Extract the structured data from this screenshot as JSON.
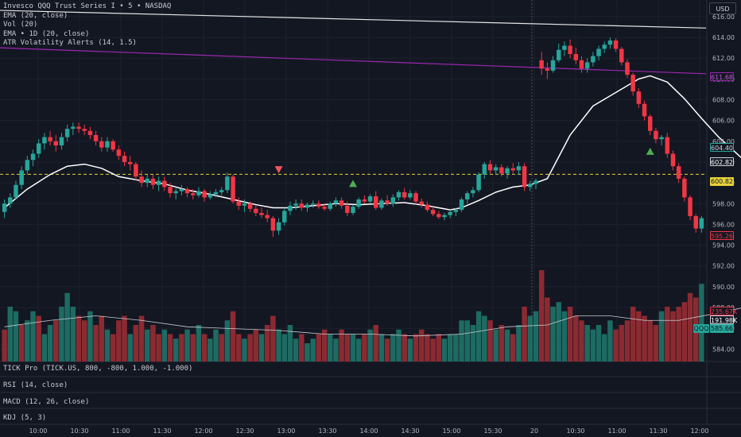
{
  "legend": {
    "symbol": "Invesco QQQ Trust Series I  •  5  •  NASDAQ",
    "ema": "EMA (20, close)",
    "vol": "Vol (20)",
    "ema_1d": "EMA  •  1D (20, close)",
    "atr": "ATR Volatility Alerts (14, 1.5)"
  },
  "currency": "USD",
  "panes": {
    "tick": "TICK Pro (TICK.US, 800, -800, 1.000, -1.000)",
    "rsi": "RSI (14, close)",
    "macd": "MACD (12, 26, close)",
    "kdj": "KDJ (5, 3)"
  },
  "price_tags": {
    "ema_1d": "611.68",
    "green": "604.40",
    "white": "602.82",
    "dashed": "600.82",
    "red": "595.26",
    "vol_red": "235.67K",
    "vol_white": "191.98K",
    "symbol": "QQQ",
    "symbol_price": "585.66"
  },
  "colors": {
    "background": "#131722",
    "up": "#26a69a",
    "down": "#f23645",
    "vol_up": "#1d6b62",
    "vol_down": "#8c2a31",
    "ema": "#ffffff",
    "ema_1d": "#9c27b0",
    "dashed": "#e6d23a",
    "grid": "#1e222d"
  },
  "chart_data": {
    "type": "candlestick",
    "y_ticks": [
      "616.00",
      "614.00",
      "612.00",
      "610.00",
      "608.00",
      "606.00",
      "604.00",
      "602.00",
      "600.00",
      "598.00",
      "596.00",
      "594.00",
      "592.00",
      "590.00",
      "588.00",
      "586.00",
      "584.00"
    ],
    "x_ticks": [
      "10:00",
      "10:30",
      "11:00",
      "11:30",
      "12:00",
      "12:30",
      "13:00",
      "13:30",
      "14:00",
      "14:30",
      "15:00",
      "15:30",
      "20",
      "10:30",
      "11:00",
      "11:30",
      "12:00"
    ],
    "ylim": [
      582.8,
      617.6
    ],
    "dashed_level": 600.82,
    "white_line": [
      [
        0,
        616.6
      ],
      [
        894,
        614.9
      ]
    ],
    "ema_1d_line": [
      [
        0,
        613.0
      ],
      [
        894,
        610.5
      ]
    ],
    "separator_x_index": 20.0,
    "candles": [
      [
        597.2,
        598.4,
        596.6,
        598.0
      ],
      [
        598.0,
        599.0,
        597.6,
        598.6
      ],
      [
        598.6,
        600.2,
        598.4,
        599.8
      ],
      [
        599.8,
        601.6,
        599.4,
        601.2
      ],
      [
        601.2,
        602.6,
        600.8,
        602.2
      ],
      [
        602.2,
        603.2,
        601.6,
        602.8
      ],
      [
        602.8,
        604.2,
        602.4,
        603.8
      ],
      [
        603.8,
        604.8,
        603.2,
        604.4
      ],
      [
        604.4,
        605.0,
        603.6,
        604.0
      ],
      [
        604.0,
        604.6,
        603.0,
        603.6
      ],
      [
        603.6,
        604.8,
        603.2,
        604.4
      ],
      [
        604.4,
        605.6,
        604.0,
        605.2
      ],
      [
        605.2,
        605.8,
        604.6,
        605.4
      ],
      [
        605.4,
        605.8,
        604.8,
        605.2
      ],
      [
        605.2,
        605.6,
        604.6,
        605.0
      ],
      [
        605.0,
        605.4,
        604.2,
        604.6
      ],
      [
        604.6,
        605.0,
        603.6,
        604.0
      ],
      [
        604.0,
        604.4,
        603.0,
        603.4
      ],
      [
        603.4,
        604.4,
        603.0,
        604.0
      ],
      [
        604.0,
        604.2,
        603.0,
        603.2
      ],
      [
        603.2,
        603.6,
        602.2,
        602.6
      ],
      [
        602.6,
        603.0,
        601.6,
        602.0
      ],
      [
        602.0,
        602.6,
        601.2,
        601.8
      ],
      [
        601.8,
        602.0,
        600.2,
        600.6
      ],
      [
        600.6,
        601.2,
        599.6,
        600.0
      ],
      [
        600.0,
        600.8,
        599.6,
        600.4
      ],
      [
        600.4,
        600.8,
        599.4,
        599.8
      ],
      [
        599.8,
        600.6,
        599.2,
        600.2
      ],
      [
        600.2,
        600.6,
        599.2,
        599.6
      ],
      [
        599.6,
        600.0,
        598.6,
        599.0
      ],
      [
        599.0,
        599.6,
        598.4,
        599.2
      ],
      [
        599.2,
        599.8,
        598.8,
        599.4
      ],
      [
        599.4,
        599.6,
        598.6,
        599.0
      ],
      [
        599.0,
        599.4,
        598.4,
        598.8
      ],
      [
        598.8,
        599.6,
        598.6,
        599.2
      ],
      [
        599.2,
        599.4,
        598.2,
        598.6
      ],
      [
        598.6,
        599.2,
        598.4,
        598.9
      ],
      [
        598.9,
        599.4,
        598.6,
        599.1
      ],
      [
        599.1,
        599.6,
        598.8,
        599.3
      ],
      [
        599.3,
        601.0,
        599.0,
        600.6
      ],
      [
        600.6,
        600.8,
        598.0,
        598.2
      ],
      [
        598.2,
        598.6,
        597.4,
        597.8
      ],
      [
        597.8,
        598.4,
        597.2,
        598.0
      ],
      [
        598.0,
        598.2,
        597.2,
        597.5
      ],
      [
        597.5,
        597.8,
        596.8,
        597.1
      ],
      [
        597.1,
        597.6,
        596.6,
        596.9
      ],
      [
        596.9,
        597.4,
        596.2,
        596.6
      ],
      [
        596.6,
        596.8,
        594.8,
        595.4
      ],
      [
        595.4,
        596.6,
        595.0,
        596.2
      ],
      [
        596.2,
        597.6,
        595.9,
        597.3
      ],
      [
        597.3,
        598.2,
        596.9,
        597.8
      ],
      [
        597.8,
        598.4,
        597.4,
        598.0
      ],
      [
        598.0,
        598.4,
        597.3,
        597.6
      ],
      [
        597.6,
        598.1,
        597.2,
        597.9
      ],
      [
        597.9,
        598.3,
        597.6,
        598.0
      ],
      [
        598.0,
        598.3,
        597.5,
        597.7
      ],
      [
        597.7,
        598.0,
        597.3,
        597.5
      ],
      [
        597.5,
        598.2,
        597.3,
        598.0
      ],
      [
        598.0,
        598.6,
        597.7,
        598.3
      ],
      [
        598.3,
        598.6,
        597.5,
        597.8
      ],
      [
        597.8,
        598.2,
        596.8,
        597.1
      ],
      [
        597.1,
        597.9,
        596.9,
        597.7
      ],
      [
        597.7,
        598.6,
        597.5,
        598.4
      ],
      [
        598.4,
        598.8,
        598.0,
        598.2
      ],
      [
        598.2,
        598.9,
        598.0,
        598.7
      ],
      [
        598.7,
        599.2,
        597.4,
        597.6
      ],
      [
        597.6,
        598.5,
        597.4,
        598.3
      ],
      [
        598.3,
        598.8,
        597.8,
        598.0
      ],
      [
        598.0,
        598.9,
        597.7,
        598.6
      ],
      [
        598.6,
        599.3,
        598.3,
        599.1
      ],
      [
        599.1,
        599.5,
        598.4,
        598.6
      ],
      [
        598.6,
        599.3,
        598.4,
        599.0
      ],
      [
        599.0,
        599.2,
        597.9,
        598.2
      ],
      [
        598.2,
        598.5,
        597.6,
        597.9
      ],
      [
        597.9,
        598.2,
        597.2,
        597.4
      ],
      [
        597.4,
        597.7,
        596.8,
        597.0
      ],
      [
        597.0,
        597.3,
        596.5,
        596.7
      ],
      [
        596.7,
        597.1,
        596.4,
        596.9
      ],
      [
        596.9,
        597.4,
        596.6,
        597.2
      ],
      [
        597.2,
        597.6,
        596.8,
        597.4
      ],
      [
        597.4,
        598.6,
        597.2,
        598.4
      ],
      [
        598.4,
        599.2,
        598.0,
        599.0
      ],
      [
        599.0,
        599.6,
        598.6,
        599.3
      ],
      [
        599.3,
        601.0,
        599.1,
        600.8
      ],
      [
        600.8,
        602.0,
        600.4,
        601.8
      ],
      [
        601.8,
        602.2,
        600.9,
        601.2
      ],
      [
        601.2,
        601.8,
        600.8,
        601.5
      ],
      [
        601.5,
        601.8,
        600.6,
        600.9
      ],
      [
        600.9,
        601.6,
        600.4,
        601.4
      ],
      [
        601.4,
        601.9,
        600.9,
        601.2
      ],
      [
        601.2,
        602.0,
        600.8,
        601.6
      ],
      [
        601.6,
        601.9,
        599.2,
        599.6
      ],
      [
        599.6,
        600.2,
        599.2,
        599.9
      ],
      [
        599.9,
        600.4,
        599.4,
        600.2
      ],
      [
        611.8,
        612.6,
        610.4,
        611.0
      ],
      [
        611.0,
        611.6,
        610.0,
        610.8
      ],
      [
        610.8,
        612.2,
        610.6,
        611.8
      ],
      [
        611.8,
        613.4,
        611.6,
        612.8
      ],
      [
        612.8,
        613.6,
        612.2,
        613.2
      ],
      [
        613.2,
        613.8,
        612.0,
        612.4
      ],
      [
        612.4,
        613.0,
        611.4,
        611.8
      ],
      [
        611.8,
        612.2,
        610.6,
        611.0
      ],
      [
        611.0,
        612.0,
        610.6,
        611.6
      ],
      [
        611.6,
        612.6,
        611.2,
        612.2
      ],
      [
        612.2,
        613.2,
        611.8,
        612.9
      ],
      [
        612.9,
        613.6,
        612.5,
        613.3
      ],
      [
        613.3,
        614.0,
        612.9,
        613.7
      ],
      [
        613.7,
        613.9,
        612.6,
        612.9
      ],
      [
        612.9,
        613.1,
        611.3,
        611.6
      ],
      [
        611.6,
        611.9,
        610.1,
        610.4
      ],
      [
        610.4,
        610.6,
        608.4,
        608.8
      ],
      [
        608.8,
        609.1,
        607.2,
        607.6
      ],
      [
        607.6,
        607.9,
        606.0,
        606.4
      ],
      [
        606.4,
        606.6,
        604.6,
        605.0
      ],
      [
        605.0,
        605.3,
        603.8,
        604.2
      ],
      [
        604.2,
        604.6,
        603.6,
        604.4
      ],
      [
        604.4,
        604.8,
        602.4,
        602.8
      ],
      [
        602.8,
        603.1,
        601.2,
        601.6
      ],
      [
        601.6,
        601.9,
        600.0,
        600.4
      ],
      [
        600.4,
        600.6,
        598.2,
        598.6
      ],
      [
        598.6,
        598.8,
        596.4,
        596.8
      ],
      [
        596.8,
        597.0,
        595.2,
        595.6
      ],
      [
        595.6,
        596.8,
        595.2,
        596.6
      ]
    ],
    "ema_points": [
      [
        0,
        597.6
      ],
      [
        4,
        599.4
      ],
      [
        8,
        600.8
      ],
      [
        11,
        601.6
      ],
      [
        14,
        601.8
      ],
      [
        17,
        601.4
      ],
      [
        20,
        600.6
      ],
      [
        24,
        600.2
      ],
      [
        28,
        599.9
      ],
      [
        32,
        599.3
      ],
      [
        36,
        598.9
      ],
      [
        40,
        598.4
      ],
      [
        44,
        597.9
      ],
      [
        47,
        597.6
      ],
      [
        50,
        597.6
      ],
      [
        54,
        597.8
      ],
      [
        58,
        598.0
      ],
      [
        62,
        597.9
      ],
      [
        66,
        598.0
      ],
      [
        70,
        598.1
      ],
      [
        74,
        597.8
      ],
      [
        78,
        597.4
      ],
      [
        80,
        597.6
      ],
      [
        83,
        598.3
      ],
      [
        86,
        599.1
      ],
      [
        89,
        599.6
      ],
      [
        92,
        599.8
      ],
      [
        95,
        600.4
      ],
      [
        99,
        604.6
      ],
      [
        103,
        607.4
      ],
      [
        107,
        608.7
      ],
      [
        111,
        610.0
      ],
      [
        113,
        610.3
      ],
      [
        116,
        609.7
      ],
      [
        119,
        608.1
      ],
      [
        122,
        606.2
      ],
      [
        125,
        604.4
      ],
      [
        128,
        602.9
      ],
      [
        130,
        601.9
      ]
    ],
    "markers": [
      {
        "type": "down",
        "i": 48,
        "price": 601.3
      },
      {
        "type": "up",
        "i": 61,
        "price": 599.9
      },
      {
        "type": "up",
        "i": 113,
        "price": 603.0
      },
      {
        "type": "up",
        "i": 156,
        "price": 614.4
      }
    ],
    "volumes": [
      [
        0.35,
        "d"
      ],
      [
        0.6,
        "u"
      ],
      [
        0.55,
        "u"
      ],
      [
        0.4,
        "d"
      ],
      [
        0.45,
        "u"
      ],
      [
        0.55,
        "u"
      ],
      [
        0.5,
        "d"
      ],
      [
        0.3,
        "u"
      ],
      [
        0.4,
        "u"
      ],
      [
        0.45,
        "d"
      ],
      [
        0.6,
        "u"
      ],
      [
        0.75,
        "u"
      ],
      [
        0.6,
        "u"
      ],
      [
        0.5,
        "d"
      ],
      [
        0.45,
        "d"
      ],
      [
        0.55,
        "u"
      ],
      [
        0.4,
        "d"
      ],
      [
        0.5,
        "d"
      ],
      [
        0.35,
        "u"
      ],
      [
        0.3,
        "d"
      ],
      [
        0.45,
        "d"
      ],
      [
        0.5,
        "d"
      ],
      [
        0.3,
        "u"
      ],
      [
        0.4,
        "d"
      ],
      [
        0.5,
        "d"
      ],
      [
        0.35,
        "u"
      ],
      [
        0.4,
        "d"
      ],
      [
        0.3,
        "d"
      ],
      [
        0.35,
        "u"
      ],
      [
        0.3,
        "d"
      ],
      [
        0.25,
        "u"
      ],
      [
        0.3,
        "d"
      ],
      [
        0.35,
        "u"
      ],
      [
        0.3,
        "d"
      ],
      [
        0.4,
        "u"
      ],
      [
        0.3,
        "d"
      ],
      [
        0.25,
        "u"
      ],
      [
        0.35,
        "u"
      ],
      [
        0.3,
        "d"
      ],
      [
        0.45,
        "u"
      ],
      [
        0.55,
        "d"
      ],
      [
        0.3,
        "d"
      ],
      [
        0.25,
        "u"
      ],
      [
        0.3,
        "d"
      ],
      [
        0.35,
        "d"
      ],
      [
        0.3,
        "u"
      ],
      [
        0.4,
        "d"
      ],
      [
        0.5,
        "d"
      ],
      [
        0.35,
        "u"
      ],
      [
        0.3,
        "u"
      ],
      [
        0.4,
        "u"
      ],
      [
        0.25,
        "u"
      ],
      [
        0.3,
        "d"
      ],
      [
        0.2,
        "u"
      ],
      [
        0.25,
        "u"
      ],
      [
        0.3,
        "d"
      ],
      [
        0.35,
        "d"
      ],
      [
        0.3,
        "u"
      ],
      [
        0.25,
        "u"
      ],
      [
        0.35,
        "d"
      ],
      [
        0.3,
        "d"
      ],
      [
        0.3,
        "u"
      ],
      [
        0.25,
        "u"
      ],
      [
        0.3,
        "d"
      ],
      [
        0.35,
        "u"
      ],
      [
        0.4,
        "d"
      ],
      [
        0.3,
        "u"
      ],
      [
        0.25,
        "d"
      ],
      [
        0.3,
        "u"
      ],
      [
        0.35,
        "u"
      ],
      [
        0.3,
        "d"
      ],
      [
        0.25,
        "u"
      ],
      [
        0.3,
        "d"
      ],
      [
        0.35,
        "d"
      ],
      [
        0.3,
        "d"
      ],
      [
        0.25,
        "d"
      ],
      [
        0.3,
        "d"
      ],
      [
        0.25,
        "u"
      ],
      [
        0.3,
        "u"
      ],
      [
        0.3,
        "u"
      ],
      [
        0.45,
        "u"
      ],
      [
        0.45,
        "u"
      ],
      [
        0.4,
        "u"
      ],
      [
        0.55,
        "u"
      ],
      [
        0.5,
        "u"
      ],
      [
        0.45,
        "d"
      ],
      [
        0.35,
        "u"
      ],
      [
        0.4,
        "d"
      ],
      [
        0.35,
        "u"
      ],
      [
        0.3,
        "d"
      ],
      [
        0.4,
        "u"
      ],
      [
        0.6,
        "d"
      ],
      [
        0.5,
        "u"
      ],
      [
        0.55,
        "u"
      ],
      [
        1.0,
        "d"
      ],
      [
        0.7,
        "d"
      ],
      [
        0.6,
        "u"
      ],
      [
        0.65,
        "u"
      ],
      [
        0.55,
        "u"
      ],
      [
        0.6,
        "d"
      ],
      [
        0.5,
        "d"
      ],
      [
        0.45,
        "d"
      ],
      [
        0.4,
        "u"
      ],
      [
        0.35,
        "u"
      ],
      [
        0.4,
        "u"
      ],
      [
        0.3,
        "u"
      ],
      [
        0.45,
        "u"
      ],
      [
        0.35,
        "d"
      ],
      [
        0.4,
        "d"
      ],
      [
        0.45,
        "d"
      ],
      [
        0.6,
        "d"
      ],
      [
        0.55,
        "d"
      ],
      [
        0.5,
        "d"
      ],
      [
        0.45,
        "d"
      ],
      [
        0.4,
        "d"
      ],
      [
        0.55,
        "u"
      ],
      [
        0.6,
        "d"
      ],
      [
        0.55,
        "d"
      ],
      [
        0.6,
        "d"
      ],
      [
        0.65,
        "d"
      ],
      [
        0.75,
        "d"
      ],
      [
        0.7,
        "d"
      ],
      [
        0.85,
        "u"
      ]
    ],
    "vol_ma_norm": [
      [
        0,
        0.38
      ],
      [
        8,
        0.45
      ],
      [
        16,
        0.5
      ],
      [
        24,
        0.45
      ],
      [
        32,
        0.38
      ],
      [
        40,
        0.36
      ],
      [
        48,
        0.34
      ],
      [
        56,
        0.3
      ],
      [
        64,
        0.3
      ],
      [
        72,
        0.28
      ],
      [
        80,
        0.3
      ],
      [
        88,
        0.38
      ],
      [
        95,
        0.4
      ],
      [
        100,
        0.5
      ],
      [
        106,
        0.5
      ],
      [
        112,
        0.45
      ],
      [
        118,
        0.45
      ],
      [
        124,
        0.52
      ],
      [
        130,
        0.6
      ]
    ]
  }
}
